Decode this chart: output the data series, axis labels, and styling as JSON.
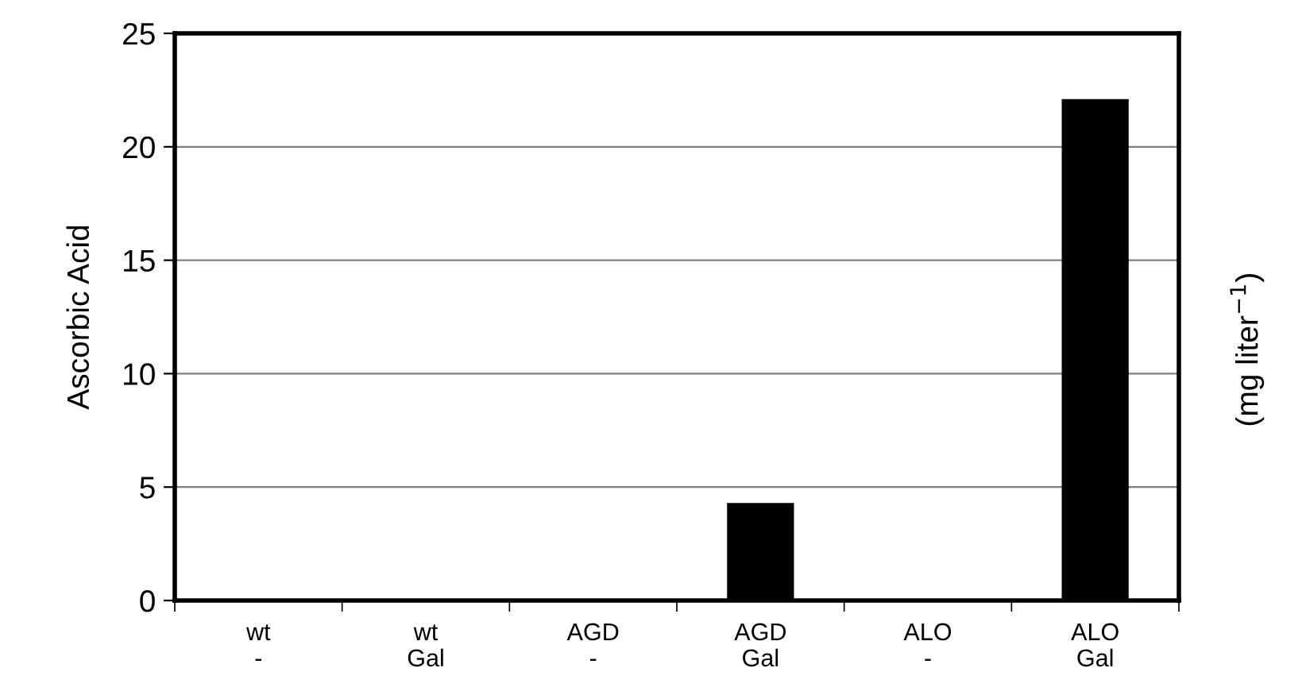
{
  "chart_data": {
    "type": "bar",
    "ylabel": "Ascorbic Acid",
    "y2label": "(mg liter$^{−1}$)",
    "categories": [
      "wt\n-",
      "wt\nGal",
      "AGD\n-",
      "AGD\nGal",
      "ALO\n-",
      "ALO\nGal"
    ],
    "values": [
      0,
      0,
      0,
      4.3,
      0,
      22.1
    ],
    "color": "#000000",
    "ylim": [
      0,
      25
    ],
    "yticks": [
      0,
      5,
      10,
      15,
      20,
      25
    ],
    "grid": "y"
  }
}
